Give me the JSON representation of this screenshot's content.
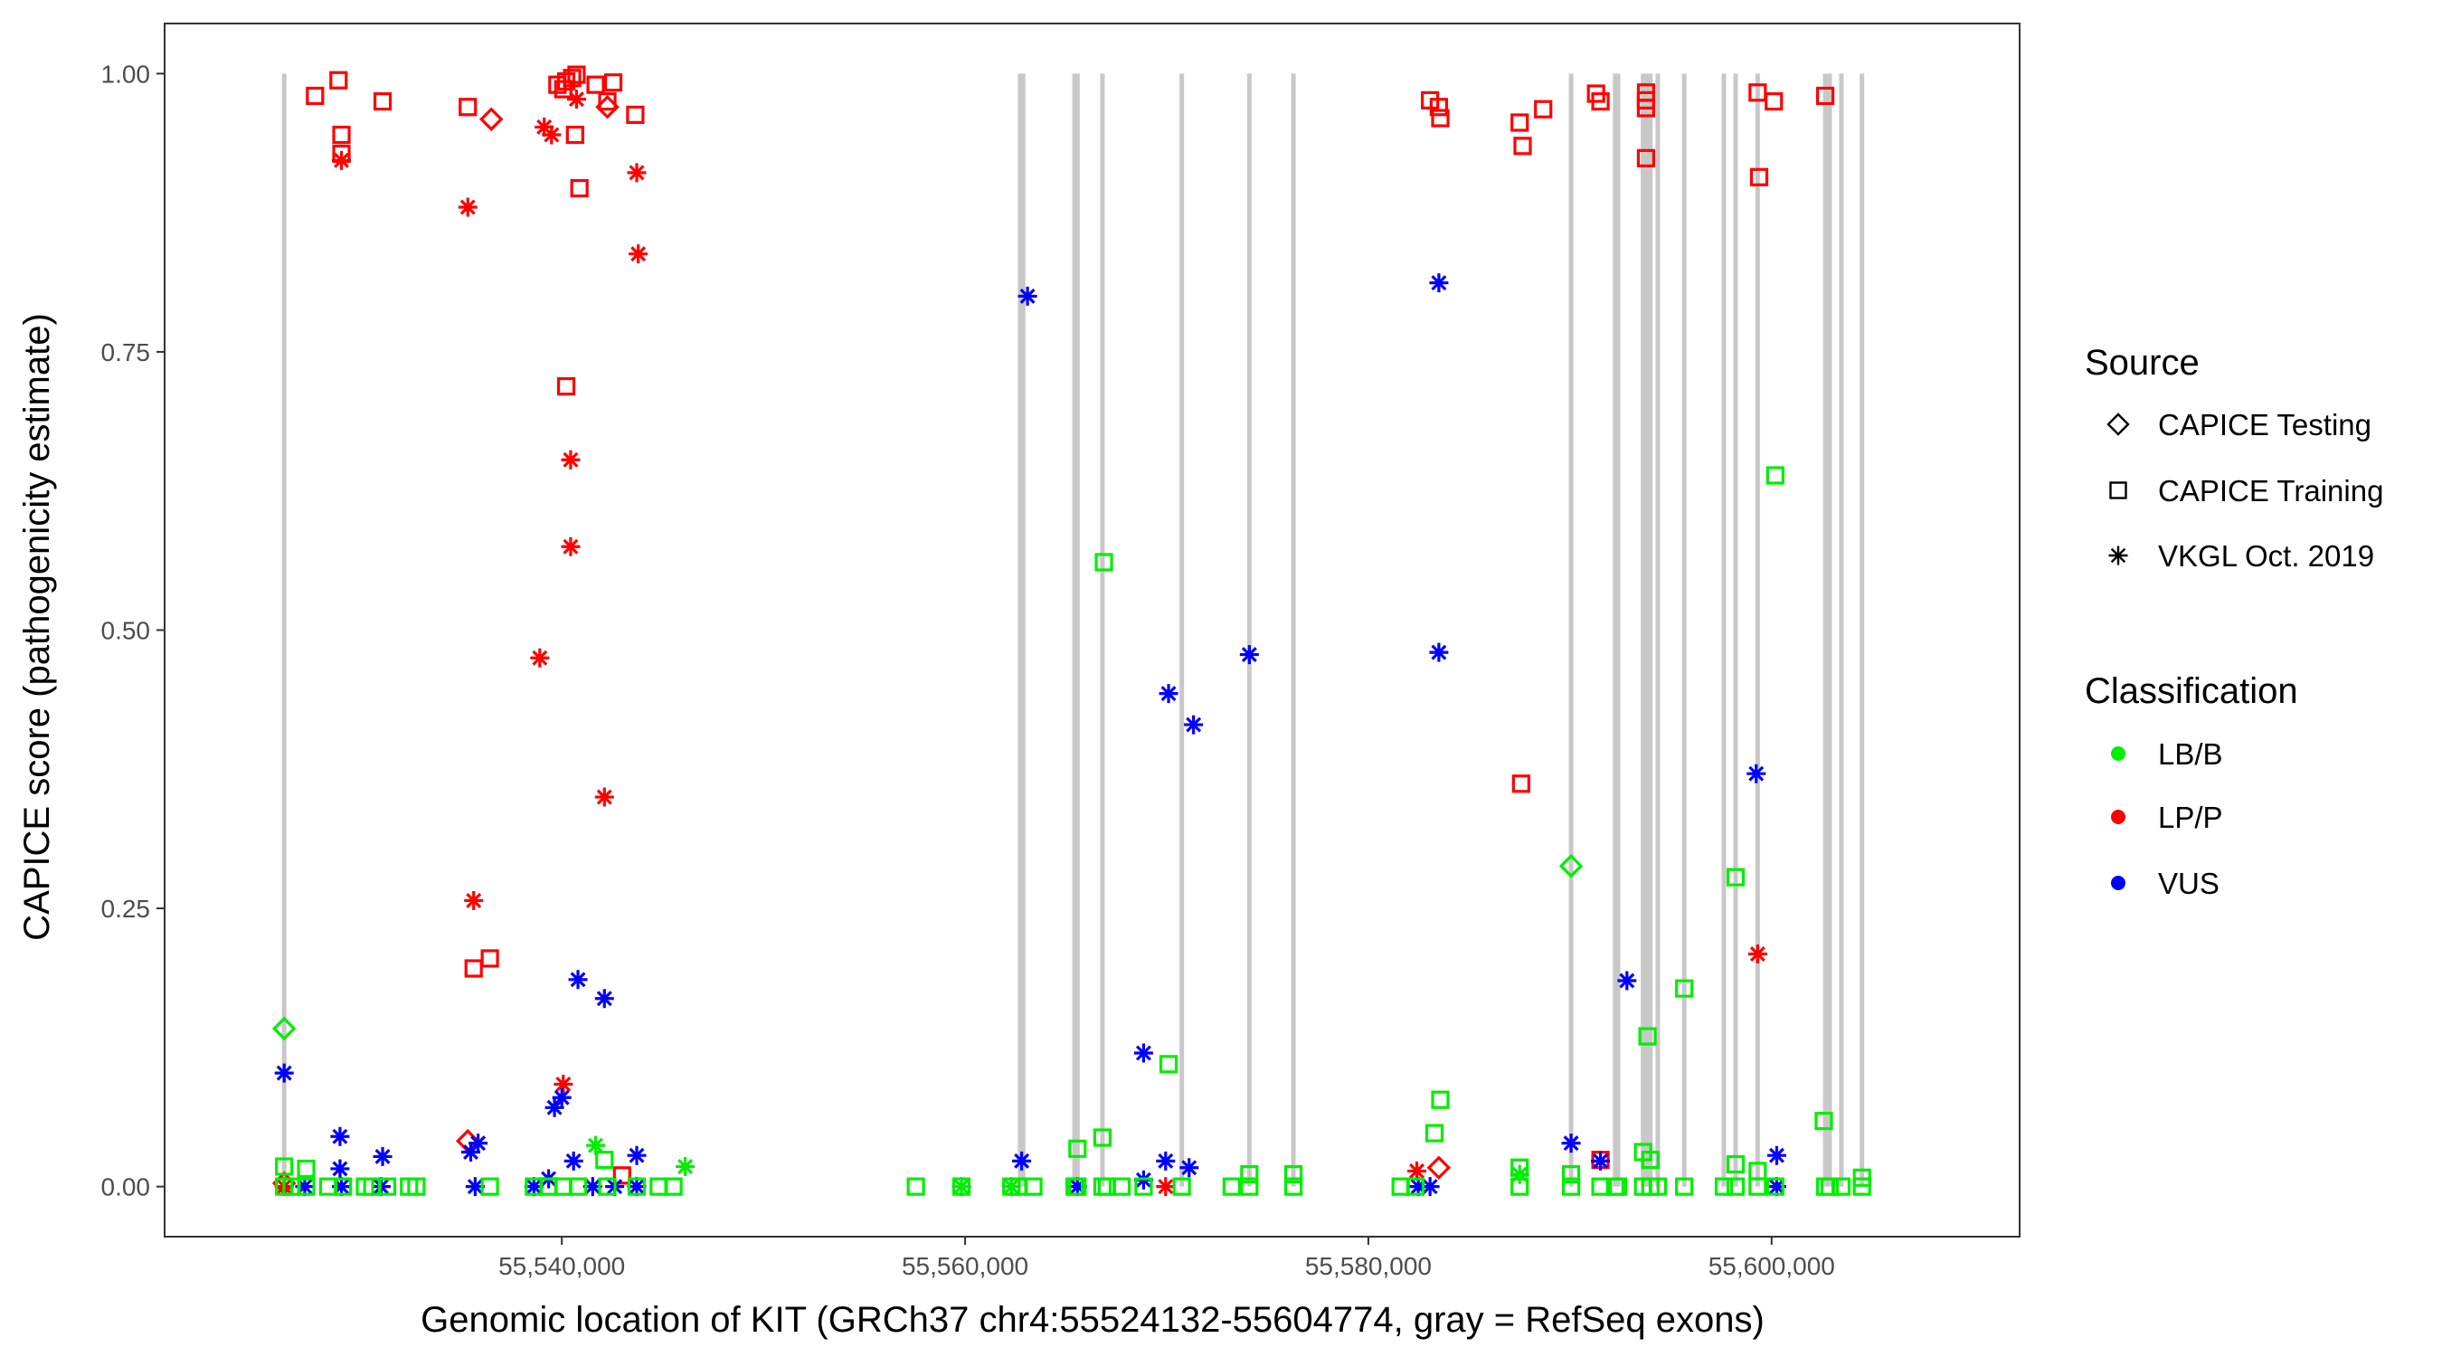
{
  "chart_data": {
    "type": "scatter",
    "xlabel": "Genomic location of KIT (GRCh37 chr4:55524132-55604774, gray = RefSeq exons)",
    "ylabel": "CAPICE score (pathogenicity estimate)",
    "xlim": [
      55520300,
      55612300
    ],
    "ylim": [
      -0.045,
      1.045
    ],
    "x_ticks": [
      55540000,
      55560000,
      55580000,
      55600000
    ],
    "x_tick_labels": [
      "55,540,000",
      "55,560,000",
      "55,580,000",
      "55,600,000"
    ],
    "y_ticks": [
      0,
      0.25,
      0.5,
      0.75,
      1.0
    ],
    "y_tick_labels": [
      "0.00",
      "0.25",
      "0.50",
      "0.75",
      "1.00"
    ],
    "grid": false,
    "exon_color": "#c8c8c8",
    "exons": [
      55526230,
      55562732,
      55562878,
      55565428,
      55565573,
      55566812,
      55570747,
      55574098,
      55576284,
      55590055,
      55592241,
      55592386,
      55593625,
      55593771,
      55593989,
      55594354,
      55595666,
      55597632,
      55598215,
      55599308,
      55602660,
      55602878,
      55603461,
      55604481
    ],
    "legend": {
      "placement": "right",
      "source_title": "Source",
      "source": [
        {
          "label": "CAPICE Testing",
          "shape": "diamond"
        },
        {
          "label": "CAPICE Training",
          "shape": "square"
        },
        {
          "label": "VKGL Oct. 2019",
          "shape": "asterisk"
        }
      ],
      "class_title": "Classification",
      "classification": [
        {
          "label": "LB/B",
          "color": "#00ee00"
        },
        {
          "label": "LP/P",
          "color": "#ff0000"
        },
        {
          "label": "VUS",
          "color": "#0000ff"
        }
      ]
    },
    "point_fields": [
      "x",
      "y",
      "source_index",
      "classification_index"
    ],
    "points": [
      [
        55527760,
        0.98,
        1,
        1
      ],
      [
        55528925,
        0.994,
        1,
        1
      ],
      [
        55529071,
        0.945,
        1,
        1
      ],
      [
        55529071,
        0.928,
        1,
        1
      ],
      [
        55529071,
        0.922,
        2,
        1
      ],
      [
        55531112,
        0.975,
        1,
        1
      ],
      [
        55535337,
        0.97,
        1,
        1
      ],
      [
        55536503,
        0.959,
        0,
        1
      ],
      [
        55535337,
        0.88,
        2,
        1
      ],
      [
        55535628,
        0.196,
        1,
        1
      ],
      [
        55536430,
        0.205,
        1,
        1
      ],
      [
        55535337,
        0.041,
        0,
        1
      ],
      [
        55535628,
        0.257,
        2,
        1
      ],
      [
        55539126,
        0.952,
        2,
        1
      ],
      [
        55539490,
        0.945,
        2,
        1
      ],
      [
        55539781,
        0.99,
        1,
        1
      ],
      [
        55540073,
        0.986,
        1,
        1
      ],
      [
        55540219,
        0.993,
        1,
        1
      ],
      [
        55540510,
        0.996,
        1,
        1
      ],
      [
        55540729,
        0.999,
        1,
        1
      ],
      [
        55540656,
        0.945,
        1,
        1
      ],
      [
        55540729,
        0.977,
        2,
        1
      ],
      [
        55540874,
        0.897,
        1,
        1
      ],
      [
        55541676,
        0.99,
        1,
        1
      ],
      [
        55542550,
        0.992,
        1,
        1
      ],
      [
        55542259,
        0.975,
        1,
        1
      ],
      [
        55542259,
        0.97,
        0,
        1
      ],
      [
        55543643,
        0.963,
        1,
        1
      ],
      [
        55543716,
        0.911,
        2,
        1
      ],
      [
        55543789,
        0.838,
        2,
        1
      ],
      [
        55540219,
        0.719,
        1,
        1
      ],
      [
        55540437,
        0.653,
        2,
        1
      ],
      [
        55540437,
        0.575,
        2,
        1
      ],
      [
        55538907,
        0.475,
        2,
        1
      ],
      [
        55542113,
        0.35,
        2,
        1
      ],
      [
        55540073,
        0.092,
        2,
        1
      ],
      [
        55542987,
        0.01,
        1,
        1
      ],
      [
        55526230,
        0.0,
        2,
        1
      ],
      [
        55526230,
        0.003,
        0,
        1
      ],
      [
        55583060,
        0.976,
        1,
        1
      ],
      [
        55583497,
        0.97,
        1,
        1
      ],
      [
        55583570,
        0.96,
        1,
        1
      ],
      [
        55587504,
        0.956,
        1,
        1
      ],
      [
        55587650,
        0.935,
        1,
        1
      ],
      [
        55588670,
        0.968,
        1,
        1
      ],
      [
        55591293,
        0.982,
        1,
        1
      ],
      [
        55591512,
        0.975,
        1,
        1
      ],
      [
        55593771,
        0.983,
        1,
        1
      ],
      [
        55593771,
        0.976,
        1,
        1
      ],
      [
        55593771,
        0.969,
        1,
        1
      ],
      [
        55593771,
        0.924,
        1,
        1
      ],
      [
        55599308,
        0.983,
        1,
        1
      ],
      [
        55600110,
        0.975,
        1,
        1
      ],
      [
        55599381,
        0.907,
        1,
        1
      ],
      [
        55602660,
        0.98,
        1,
        1
      ],
      [
        55587577,
        0.362,
        1,
        1
      ],
      [
        55599308,
        0.209,
        2,
        1
      ],
      [
        55582404,
        0.014,
        2,
        1
      ],
      [
        55583497,
        0.017,
        0,
        1
      ],
      [
        55569946,
        0.0,
        2,
        1
      ],
      [
        55591512,
        0.024,
        1,
        1
      ],
      [
        55526230,
        0.102,
        2,
        2
      ],
      [
        55528998,
        0.045,
        2,
        2
      ],
      [
        55528998,
        0.016,
        2,
        2
      ],
      [
        55527250,
        0.0,
        2,
        2
      ],
      [
        55529071,
        0.0,
        2,
        2
      ],
      [
        55531112,
        0.027,
        2,
        2
      ],
      [
        55531039,
        0.0,
        2,
        2
      ],
      [
        55535483,
        0.031,
        2,
        2
      ],
      [
        55535847,
        0.039,
        2,
        2
      ],
      [
        55535701,
        0.0,
        2,
        2
      ],
      [
        55539636,
        0.071,
        2,
        2
      ],
      [
        55540000,
        0.08,
        2,
        2
      ],
      [
        55540583,
        0.023,
        2,
        2
      ],
      [
        55538616,
        0.0,
        2,
        2
      ],
      [
        55539344,
        0.007,
        2,
        2
      ],
      [
        55540801,
        0.186,
        2,
        2
      ],
      [
        55542113,
        0.169,
        2,
        2
      ],
      [
        55543716,
        0.028,
        2,
        2
      ],
      [
        55543716,
        0.0,
        2,
        2
      ],
      [
        55541530,
        0.0,
        2,
        2
      ],
      [
        55542623,
        0.0,
        2,
        2
      ],
      [
        55563097,
        0.8,
        2,
        2
      ],
      [
        55562805,
        0.023,
        2,
        2
      ],
      [
        55565573,
        0.0,
        2,
        2
      ],
      [
        55568853,
        0.12,
        2,
        2
      ],
      [
        55570091,
        0.443,
        2,
        2
      ],
      [
        55571330,
        0.415,
        2,
        2
      ],
      [
        55569946,
        0.023,
        2,
        2
      ],
      [
        55568853,
        0.006,
        2,
        2
      ],
      [
        55571111,
        0.017,
        2,
        2
      ],
      [
        55574098,
        0.478,
        2,
        2
      ],
      [
        55583497,
        0.812,
        2,
        2
      ],
      [
        55583497,
        0.48,
        2,
        2
      ],
      [
        55582477,
        0.0,
        2,
        2
      ],
      [
        55583060,
        0.0,
        2,
        2
      ],
      [
        55590055,
        0.039,
        2,
        2
      ],
      [
        55591512,
        0.023,
        2,
        2
      ],
      [
        55592824,
        0.185,
        2,
        2
      ],
      [
        55599235,
        0.371,
        2,
        2
      ],
      [
        55600255,
        0.028,
        2,
        2
      ],
      [
        55600255,
        0.0,
        2,
        2
      ],
      [
        55526230,
        0.142,
        0,
        0
      ],
      [
        55566885,
        0.561,
        1,
        0
      ],
      [
        55600182,
        0.639,
        1,
        0
      ],
      [
        55590055,
        0.288,
        0,
        0
      ],
      [
        55598215,
        0.278,
        1,
        0
      ],
      [
        55595666,
        0.178,
        1,
        0
      ],
      [
        55593844,
        0.135,
        1,
        0
      ],
      [
        55570091,
        0.11,
        1,
        0
      ],
      [
        55583570,
        0.078,
        1,
        0
      ],
      [
        55583278,
        0.048,
        1,
        0
      ],
      [
        55602587,
        0.059,
        1,
        0
      ],
      [
        55565573,
        0.034,
        1,
        0
      ],
      [
        55566812,
        0.044,
        1,
        0
      ],
      [
        55546120,
        0.018,
        2,
        0
      ],
      [
        55541676,
        0.037,
        2,
        0
      ],
      [
        55542113,
        0.024,
        1,
        0
      ],
      [
        55526230,
        0.018,
        1,
        0
      ],
      [
        55527322,
        0.016,
        1,
        0
      ],
      [
        55587504,
        0.017,
        1,
        0
      ],
      [
        55590055,
        0.011,
        1,
        0
      ],
      [
        55593625,
        0.031,
        1,
        0
      ],
      [
        55593989,
        0.024,
        1,
        0
      ],
      [
        55598215,
        0.02,
        1,
        0
      ],
      [
        55599308,
        0.014,
        1,
        0
      ],
      [
        55574098,
        0.011,
        1,
        0
      ],
      [
        55576284,
        0.011,
        1,
        0
      ],
      [
        55604481,
        0.008,
        1,
        0
      ],
      [
        55587504,
        0.011,
        2,
        0
      ],
      [
        55559818,
        0.0,
        2,
        0
      ],
      [
        55562295,
        0.0,
        2,
        0
      ],
      [
        55526230,
        0,
        1,
        0
      ],
      [
        55526594,
        0,
        1,
        0
      ],
      [
        55527322,
        0,
        1,
        0
      ],
      [
        55528415,
        0,
        1,
        0
      ],
      [
        55529144,
        0,
        1,
        0
      ],
      [
        55530237,
        0,
        1,
        0
      ],
      [
        55530601,
        0,
        1,
        0
      ],
      [
        55531330,
        0,
        1,
        0
      ],
      [
        55532423,
        0,
        1,
        0
      ],
      [
        55532787,
        0,
        1,
        0
      ],
      [
        55536430,
        0,
        1,
        0
      ],
      [
        55538616,
        0,
        1,
        0
      ],
      [
        55539344,
        0,
        1,
        0
      ],
      [
        55540073,
        0,
        1,
        0
      ],
      [
        55540801,
        0,
        1,
        0
      ],
      [
        55542259,
        0,
        1,
        0
      ],
      [
        55543716,
        0,
        1,
        0
      ],
      [
        55544808,
        0,
        1,
        0
      ],
      [
        55545537,
        0,
        1,
        0
      ],
      [
        55557559,
        0,
        1,
        0
      ],
      [
        55559818,
        0,
        1,
        0
      ],
      [
        55562295,
        0,
        1,
        0
      ],
      [
        55562659,
        0,
        1,
        0
      ],
      [
        55563388,
        0,
        1,
        0
      ],
      [
        55565428,
        0,
        1,
        0
      ],
      [
        55565573,
        0,
        1,
        0
      ],
      [
        55566812,
        0,
        1,
        0
      ],
      [
        55567031,
        0,
        1,
        0
      ],
      [
        55567760,
        0,
        1,
        0
      ],
      [
        55568853,
        0,
        1,
        0
      ],
      [
        55570747,
        0,
        1,
        0
      ],
      [
        55573224,
        0,
        1,
        0
      ],
      [
        55574098,
        0,
        1,
        0
      ],
      [
        55576284,
        0,
        1,
        0
      ],
      [
        55581603,
        0,
        1,
        0
      ],
      [
        55582332,
        0,
        1,
        0
      ],
      [
        55587504,
        0,
        1,
        0
      ],
      [
        55590055,
        0,
        1,
        0
      ],
      [
        55591512,
        0,
        1,
        0
      ],
      [
        55592241,
        0,
        1,
        0
      ],
      [
        55592386,
        0,
        1,
        0
      ],
      [
        55593625,
        0,
        1,
        0
      ],
      [
        55593989,
        0,
        1,
        0
      ],
      [
        55594354,
        0,
        1,
        0
      ],
      [
        55595666,
        0,
        1,
        0
      ],
      [
        55597632,
        0,
        1,
        0
      ],
      [
        55598215,
        0,
        1,
        0
      ],
      [
        55599308,
        0,
        1,
        0
      ],
      [
        55600182,
        0,
        1,
        0
      ],
      [
        55602660,
        0,
        1,
        0
      ],
      [
        55602878,
        0,
        1,
        0
      ],
      [
        55603461,
        0,
        1,
        0
      ],
      [
        55604481,
        0,
        1,
        0
      ]
    ]
  }
}
